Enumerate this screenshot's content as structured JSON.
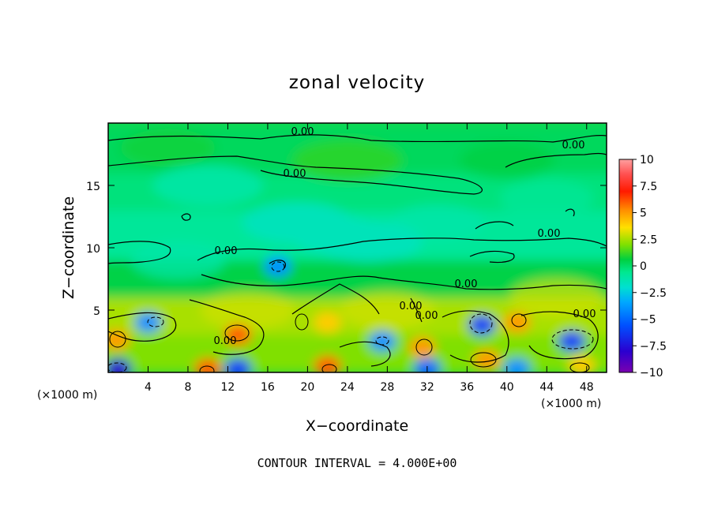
{
  "chart_data": {
    "type": "heatmap",
    "title": "zonal velocity",
    "xlabel": "X−coordinate",
    "ylabel": "Z−coordinate",
    "x_unit_left": "(×1000 m)",
    "x_unit_right": "(×1000 m)",
    "xlim": [
      0,
      50
    ],
    "ylim": [
      0,
      20
    ],
    "x_ticks": [
      4,
      8,
      12,
      16,
      20,
      24,
      28,
      32,
      36,
      40,
      44,
      48
    ],
    "x_tick_labels": [
      "4",
      "8",
      "12",
      "16",
      "20",
      "24",
      "28",
      "32",
      "36",
      "40",
      "44",
      "48"
    ],
    "y_ticks": [
      5,
      10,
      15
    ],
    "y_tick_labels": [
      "5",
      "10",
      "15"
    ],
    "colorbar": {
      "min": -10,
      "max": 10,
      "ticks": [
        10,
        7.5,
        5,
        2.5,
        0,
        -2.5,
        -5,
        -7.5,
        -10
      ],
      "tick_labels": [
        "10",
        "7.5",
        "5",
        "2.5",
        "0",
        "−2.5",
        "−5",
        "−7.5",
        "−10"
      ],
      "colors": [
        "#7a00b0",
        "#2a00d0",
        "#0050ff",
        "#00c8ff",
        "#00e8a0",
        "#00d040",
        "#a0e000",
        "#ffe000",
        "#ff9000",
        "#ff2000",
        "#ff6060",
        "#ffa0a0"
      ]
    },
    "contour_labels": [
      "0.00",
      "0.00",
      "0.00",
      "0.00",
      "0.00",
      "0.00",
      "0.00",
      "0.00",
      "0.00",
      "0.00"
    ],
    "footer": "CONTOUR INTERVAL = 4.000E+00",
    "features": [
      {
        "x": 1,
        "z": 0.3,
        "v": -8
      },
      {
        "x": 0.8,
        "z": 2.6,
        "v": 5
      },
      {
        "x": 4,
        "z": 4,
        "v": -4
      },
      {
        "x": 10,
        "z": 0.3,
        "v": 6
      },
      {
        "x": 13,
        "z": 3,
        "v": 6
      },
      {
        "x": 13,
        "z": 0.3,
        "v": -6
      },
      {
        "x": 17,
        "z": 8.5,
        "v": -4
      },
      {
        "x": 22,
        "z": 0.5,
        "v": 6
      },
      {
        "x": 22,
        "z": 4,
        "v": 4
      },
      {
        "x": 27.5,
        "z": 2.5,
        "v": -4
      },
      {
        "x": 31.5,
        "z": 2,
        "v": 5
      },
      {
        "x": 32,
        "z": 0.3,
        "v": -5
      },
      {
        "x": 37.5,
        "z": 3.8,
        "v": -6
      },
      {
        "x": 38,
        "z": 1,
        "v": 5
      },
      {
        "x": 41,
        "z": 4,
        "v": 5
      },
      {
        "x": 41,
        "z": 0.3,
        "v": -4
      },
      {
        "x": 46.5,
        "z": 2.5,
        "v": -6
      },
      {
        "x": 47.5,
        "z": 0.5,
        "v": 4
      },
      {
        "x": 19,
        "z": 12,
        "v": -1.5
      },
      {
        "x": 26,
        "z": 10.5,
        "v": -1.5
      },
      {
        "x": 10,
        "z": 15,
        "v": -1
      },
      {
        "x": 24,
        "z": 17,
        "v": 1
      }
    ]
  }
}
